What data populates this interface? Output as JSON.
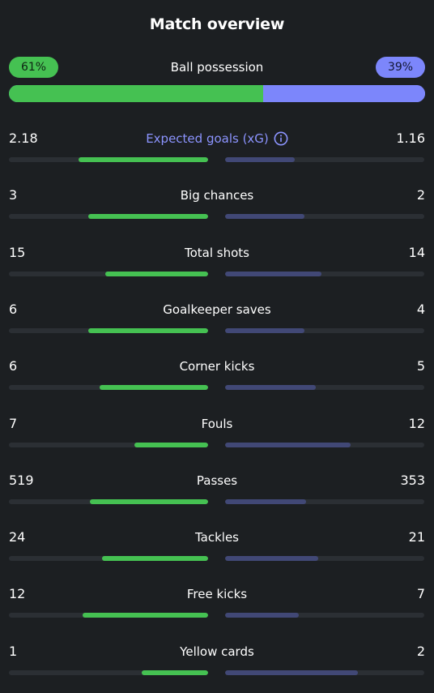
{
  "header": {
    "title": "Match overview"
  },
  "possession": {
    "label": "Ball possession",
    "home_label": "61%",
    "away_label": "39%",
    "home": 0.61,
    "away": 0.39
  },
  "colors": {
    "background": "#1c1f22",
    "home": "#45c152",
    "away": "#7c86fb",
    "away_bar": "#414876",
    "track": "#2b2f34",
    "accent_label": "#8c94ff"
  },
  "stats": [
    {
      "label": "Expected goals (xG)",
      "home": "2.18",
      "away": "1.16",
      "home_fill": 0.65,
      "away_fill": 0.35,
      "accent": true,
      "icon": "info-icon"
    },
    {
      "label": "Big chances",
      "home": "3",
      "away": "2",
      "home_fill": 0.6,
      "away_fill": 0.4
    },
    {
      "label": "Total shots",
      "home": "15",
      "away": "14",
      "home_fill": 0.517,
      "away_fill": 0.483
    },
    {
      "label": "Goalkeeper saves",
      "home": "6",
      "away": "4",
      "home_fill": 0.6,
      "away_fill": 0.4
    },
    {
      "label": "Corner kicks",
      "home": "6",
      "away": "5",
      "home_fill": 0.545,
      "away_fill": 0.455
    },
    {
      "label": "Fouls",
      "home": "7",
      "away": "12",
      "home_fill": 0.368,
      "away_fill": 0.632
    },
    {
      "label": "Passes",
      "home": "519",
      "away": "353",
      "home_fill": 0.595,
      "away_fill": 0.405
    },
    {
      "label": "Tackles",
      "home": "24",
      "away": "21",
      "home_fill": 0.533,
      "away_fill": 0.467
    },
    {
      "label": "Free kicks",
      "home": "12",
      "away": "7",
      "home_fill": 0.632,
      "away_fill": 0.368
    },
    {
      "label": "Yellow cards",
      "home": "1",
      "away": "2",
      "home_fill": 0.333,
      "away_fill": 0.667
    }
  ]
}
